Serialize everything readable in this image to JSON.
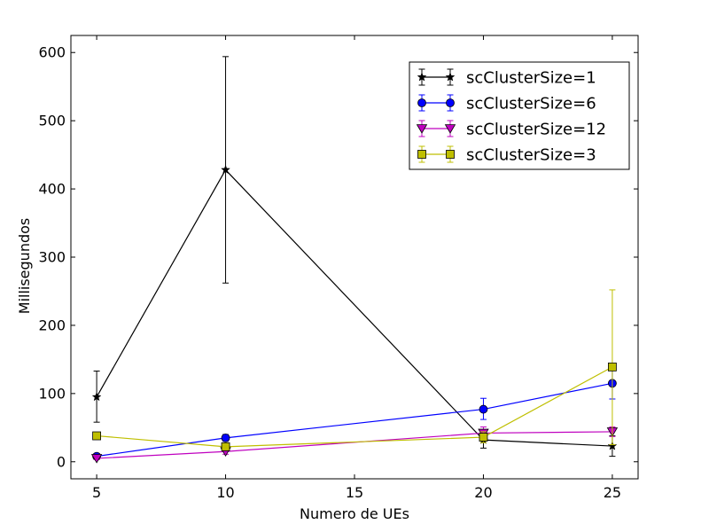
{
  "chart_data": {
    "type": "line",
    "title": "",
    "xlabel": "Numero de UEs",
    "ylabel": "Millisegundos",
    "xlim": [
      4,
      26
    ],
    "ylim": [
      -25,
      625
    ],
    "xticks": [
      5,
      10,
      15,
      20,
      25
    ],
    "yticks": [
      0,
      100,
      200,
      300,
      400,
      500,
      600
    ],
    "grid": false,
    "legend_position": "top-right",
    "series": [
      {
        "name": "scClusterSize=1",
        "color": "#000000",
        "marker": "star",
        "x": [
          5,
          10,
          20,
          25
        ],
        "y": [
          95,
          428,
          32,
          23
        ],
        "yerr_low": [
          58,
          262,
          20,
          8
        ],
        "yerr_high": [
          133,
          594,
          44,
          38
        ]
      },
      {
        "name": "scClusterSize=6",
        "color": "#0000ff",
        "marker": "circle",
        "x": [
          5,
          10,
          20,
          25
        ],
        "y": [
          8,
          35,
          77,
          115
        ],
        "yerr_low": [
          4,
          30,
          62,
          92
        ],
        "yerr_high": [
          12,
          40,
          93,
          138
        ]
      },
      {
        "name": "scClusterSize=12",
        "color": "#bf00bf",
        "marker": "triangle-down",
        "x": [
          5,
          10,
          20,
          25
        ],
        "y": [
          5,
          15,
          42,
          44
        ],
        "yerr_low": [
          3,
          11,
          33,
          37
        ],
        "yerr_high": [
          7,
          19,
          51,
          51
        ]
      },
      {
        "name": "scClusterSize=3",
        "color": "#bfbf00",
        "marker": "square",
        "x": [
          5,
          10,
          20,
          25
        ],
        "y": [
          38,
          22,
          36,
          139
        ],
        "yerr_low": [
          35,
          17,
          28,
          25
        ],
        "yerr_high": [
          41,
          27,
          44,
          252
        ]
      }
    ]
  }
}
